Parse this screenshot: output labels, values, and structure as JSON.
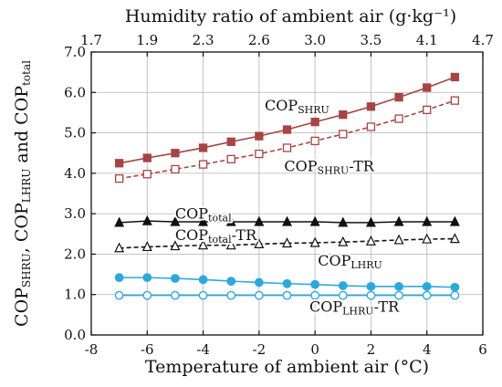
{
  "chart_data": {
    "type": "line",
    "xlabel": "Temperature of ambient air (°C)",
    "x2label": "Humidity ratio of ambient air (g·kg⁻¹)",
    "ylabel": {
      "parts": [
        {
          "t": "COP",
          "sub": false
        },
        {
          "t": "SHRU",
          "sub": true
        },
        {
          "t": ", COP",
          "sub": false
        },
        {
          "t": "LHRU",
          "sub": true
        },
        {
          "t": " and COP",
          "sub": false
        },
        {
          "t": "total",
          "sub": true
        }
      ]
    },
    "xlim": [
      -8,
      6
    ],
    "ylim": [
      0,
      7
    ],
    "xticks": [
      -8,
      -6,
      -4,
      -2,
      0,
      2,
      4,
      6
    ],
    "yticks": [
      0.0,
      1.0,
      2.0,
      3.0,
      4.0,
      5.0,
      6.0,
      7.0
    ],
    "x2ticks": [
      "1.7",
      "1.9",
      "2.3",
      "2.6",
      "3.0",
      "3.5",
      "4.1",
      "4.7"
    ],
    "x": [
      -7,
      -6,
      -5,
      -4,
      -3,
      -2,
      -1,
      0,
      1,
      2,
      3,
      4,
      5
    ],
    "series": [
      {
        "id": "cop-shru",
        "label": [
          {
            "t": "COP",
            "sub": false
          },
          {
            "t": "SHRU",
            "sub": true
          }
        ],
        "annot_at": [
          -1.8,
          5.55
        ],
        "color": "#a64545",
        "marker": "square",
        "filled": true,
        "dashed": false,
        "values": [
          4.25,
          4.38,
          4.5,
          4.63,
          4.78,
          4.92,
          5.08,
          5.27,
          5.45,
          5.65,
          5.88,
          6.12,
          6.38
        ]
      },
      {
        "id": "cop-shru-tr",
        "label": [
          {
            "t": "COP",
            "sub": false
          },
          {
            "t": "SHRU",
            "sub": true
          },
          {
            "t": "-TR",
            "sub": false
          }
        ],
        "annot_at": [
          -1.1,
          4.05
        ],
        "color": "#a64545",
        "marker": "square",
        "filled": false,
        "dashed": true,
        "values": [
          3.87,
          3.98,
          4.1,
          4.22,
          4.35,
          4.48,
          4.63,
          4.8,
          4.97,
          5.15,
          5.35,
          5.57,
          5.8
        ]
      },
      {
        "id": "cop-total",
        "label": [
          {
            "t": "COP",
            "sub": false
          },
          {
            "t": "total",
            "sub": true
          }
        ],
        "annot_at": [
          -5.0,
          2.88
        ],
        "color": "#111111",
        "marker": "triangle",
        "filled": true,
        "dashed": false,
        "values": [
          2.78,
          2.82,
          2.8,
          2.8,
          2.8,
          2.8,
          2.8,
          2.8,
          2.78,
          2.78,
          2.8,
          2.8,
          2.8
        ]
      },
      {
        "id": "cop-total-tr",
        "label": [
          {
            "t": "COP",
            "sub": false
          },
          {
            "t": "total",
            "sub": true
          },
          {
            "t": "-TR",
            "sub": false
          }
        ],
        "annot_at": [
          -5.0,
          2.35
        ],
        "color": "#111111",
        "marker": "triangle",
        "filled": false,
        "dashed": true,
        "values": [
          2.15,
          2.18,
          2.2,
          2.22,
          2.22,
          2.25,
          2.27,
          2.28,
          2.3,
          2.32,
          2.35,
          2.37,
          2.38
        ]
      },
      {
        "id": "cop-lhru",
        "label": [
          {
            "t": "COP",
            "sub": false
          },
          {
            "t": "LHRU",
            "sub": true
          }
        ],
        "annot_at": [
          0.1,
          1.72
        ],
        "color": "#2ea8dc",
        "marker": "circle",
        "filled": true,
        "dashed": false,
        "values": [
          1.42,
          1.42,
          1.4,
          1.37,
          1.33,
          1.3,
          1.27,
          1.25,
          1.22,
          1.2,
          1.2,
          1.2,
          1.18
        ]
      },
      {
        "id": "cop-lhru-tr",
        "label": [
          {
            "t": "COP",
            "sub": false
          },
          {
            "t": "LHRU",
            "sub": true
          },
          {
            "t": "-TR",
            "sub": false
          }
        ],
        "annot_at": [
          -0.2,
          0.58
        ],
        "color": "#2ea8dc",
        "marker": "circle",
        "filled": false,
        "dashed": false,
        "values": [
          0.98,
          0.98,
          0.98,
          0.98,
          0.98,
          0.98,
          0.98,
          0.98,
          0.98,
          0.98,
          0.98,
          0.98,
          0.98
        ]
      }
    ]
  }
}
